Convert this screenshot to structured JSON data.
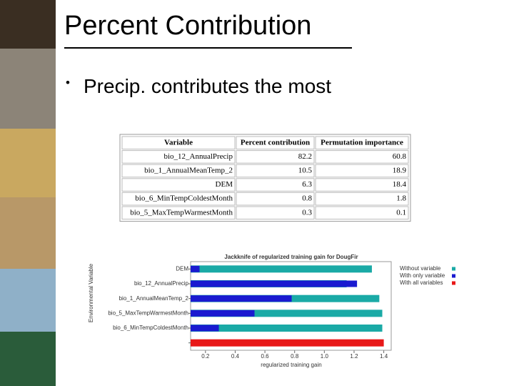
{
  "slide": {
    "title": "Percent Contribution",
    "bullets": [
      "Precip. contributes the most"
    ]
  },
  "table": {
    "header": [
      "Variable",
      "Percent contribution",
      "Permutation importance"
    ],
    "rows": [
      [
        "bio_12_AnnualPrecip",
        82.2,
        60.8
      ],
      [
        "bio_1_AnnualMeanTemp_2",
        10.5,
        18.9
      ],
      [
        "DEM",
        6.3,
        18.4
      ],
      [
        "bio_6_MinTempColdestMonth",
        0.8,
        1.8
      ],
      [
        "bio_5_MaxTempWarmestMonth",
        0.3,
        0.1
      ]
    ]
  },
  "chart_data": {
    "type": "hbar",
    "title": "Jackknife of regularized training gain for DougFir",
    "xlabel": "regularized training gain",
    "ylabel": "Environmental Variable",
    "categories": [
      "DEM",
      "bio_12_AnnualPrecip",
      "bio_1_AnnualMeanTemp_2",
      "bio_5_MaxTempWarmestMonth",
      "bio_6_MinTempColdestMonth",
      null
    ],
    "series": [
      {
        "name": "Without variable",
        "color": "#1aaaa6",
        "values": [
          1.32,
          1.15,
          1.37,
          1.39,
          1.39,
          null
        ]
      },
      {
        "name": "With only variable",
        "color": "#1a1ad0",
        "values": [
          0.16,
          1.22,
          0.78,
          0.53,
          0.29,
          null
        ]
      },
      {
        "name": "With all variables",
        "color": "#e81818",
        "values": [
          null,
          null,
          null,
          null,
          null,
          1.4
        ]
      }
    ],
    "xlim": [
      0.1,
      1.45
    ],
    "xticks": [
      0.2,
      0.4,
      0.6,
      0.8,
      {
        "value": 1,
        "label": "1.0"
      },
      1.2,
      1.4
    ]
  }
}
